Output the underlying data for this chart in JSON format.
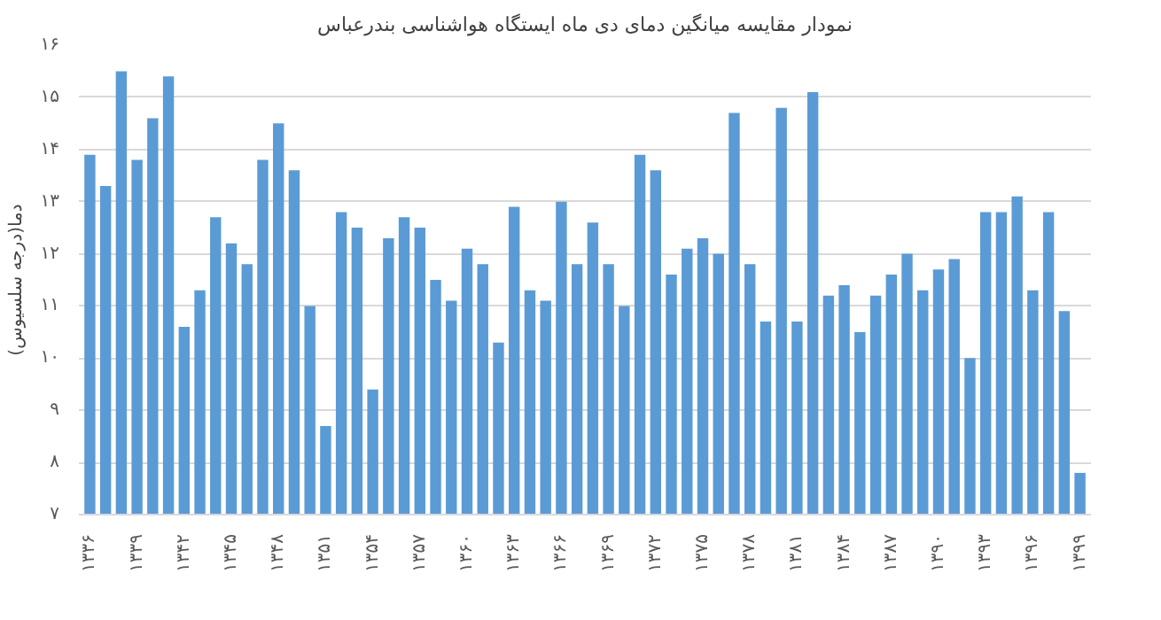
{
  "chart_data": {
    "type": "bar",
    "title": "نمودار مقایسه میانگین دمای دی ماه ایستگاه هواشناسی بندرعباس",
    "ylabel": "دما(درجه سلسیوس)",
    "categories": [
      "۱۳۳۶",
      null,
      null,
      "۱۳۳۹",
      null,
      null,
      "۱۳۴۲",
      null,
      null,
      "۱۳۴۵",
      null,
      null,
      "۱۳۴۸",
      null,
      null,
      "۱۳۵۱",
      null,
      null,
      "۱۳۵۴",
      null,
      null,
      "۱۳۵۷",
      null,
      null,
      "۱۳۶۰",
      null,
      null,
      "۱۳۶۳",
      null,
      null,
      "۱۳۶۶",
      null,
      null,
      "۱۳۶۹",
      null,
      null,
      "۱۳۷۲",
      null,
      null,
      "۱۳۷۵",
      null,
      null,
      "۱۳۷۸",
      null,
      null,
      "۱۳۸۱",
      null,
      null,
      "۱۳۸۴",
      null,
      null,
      "۱۳۸۷",
      null,
      null,
      "۱۳۹۰",
      null,
      null,
      "۱۳۹۳",
      null,
      null,
      "۱۳۹۶",
      null,
      null,
      "۱۳۹۹"
    ],
    "values": [
      13.9,
      13.3,
      15.5,
      13.8,
      14.6,
      15.4,
      10.6,
      11.3,
      12.7,
      12.2,
      11.8,
      13.8,
      14.5,
      13.6,
      11.0,
      8.7,
      12.8,
      12.5,
      9.4,
      12.3,
      12.7,
      12.5,
      11.5,
      11.1,
      12.1,
      11.8,
      10.3,
      12.9,
      11.3,
      11.1,
      13.0,
      11.8,
      12.6,
      11.8,
      11.0,
      13.9,
      13.6,
      11.6,
      12.1,
      12.3,
      12.0,
      14.7,
      11.8,
      10.7,
      14.8,
      10.7,
      15.1,
      11.2,
      11.4,
      10.5,
      11.2,
      11.6,
      12.0,
      11.3,
      11.7,
      11.9,
      10.0,
      12.8,
      12.8,
      13.1,
      11.3,
      12.8,
      10.9,
      7.8
    ],
    "color": "#5b9bd5",
    "ylim": [
      7,
      16
    ],
    "yticks": [
      {
        "value": 7,
        "label": "۷"
      },
      {
        "value": 8,
        "label": "۸"
      },
      {
        "value": 9,
        "label": "۹"
      },
      {
        "value": 10,
        "label": "۱۰"
      },
      {
        "value": 11,
        "label": "۱۱"
      },
      {
        "value": 12,
        "label": "۱۲"
      },
      {
        "value": 13,
        "label": "۱۳"
      },
      {
        "value": 14,
        "label": "۱۴"
      },
      {
        "value": 15,
        "label": "۱۵"
      },
      {
        "value": 16,
        "label": "۱۶"
      }
    ],
    "grid": "y"
  }
}
